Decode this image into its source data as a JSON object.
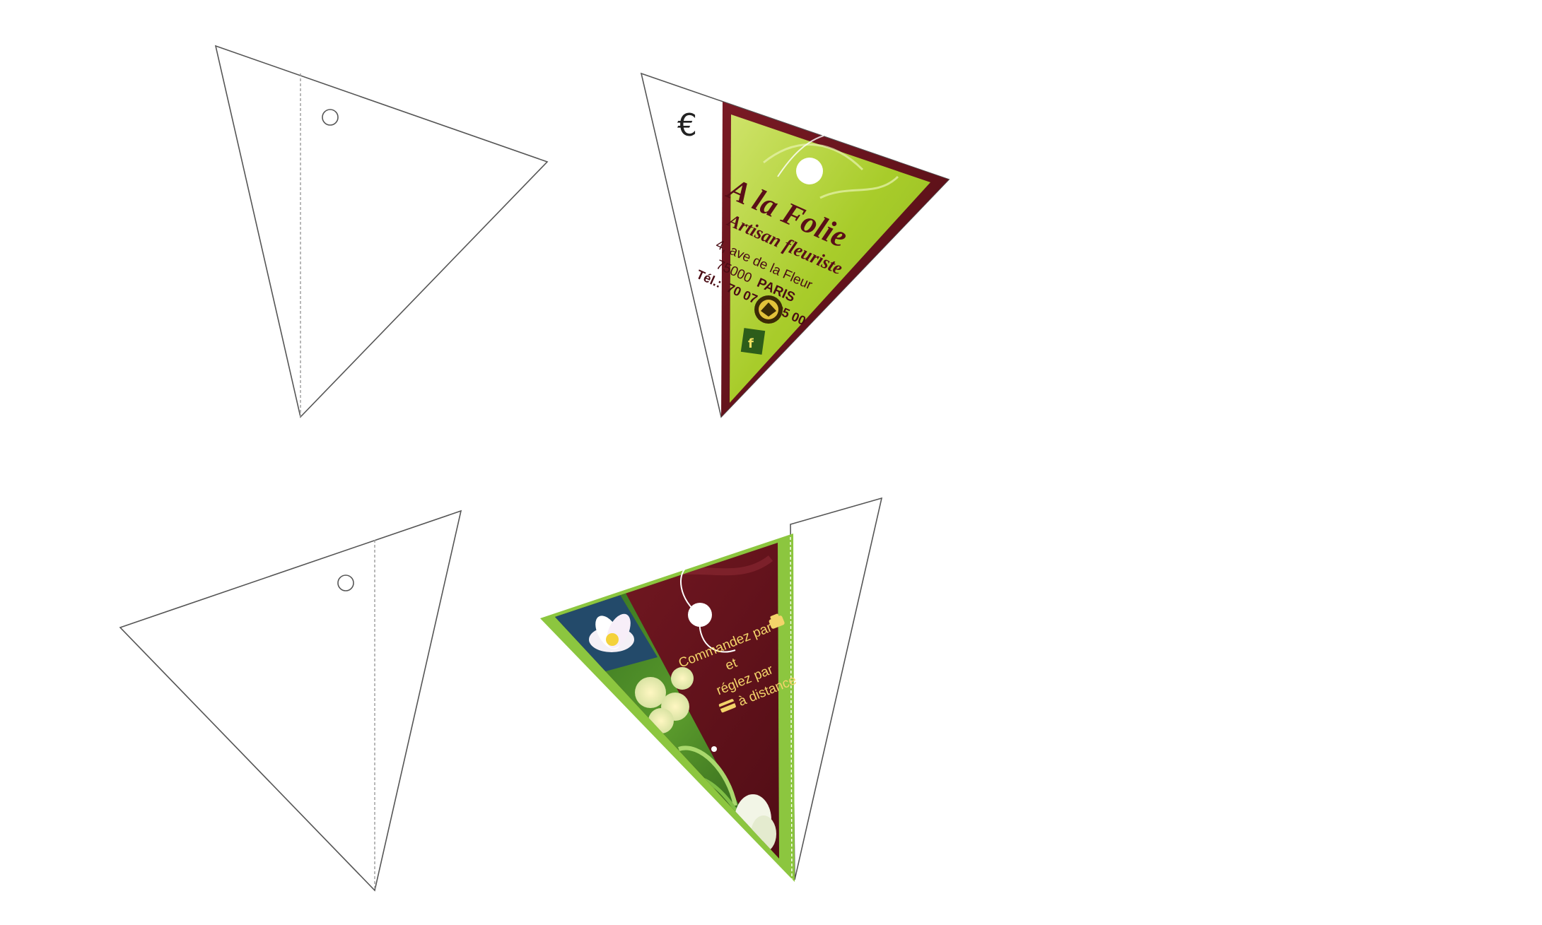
{
  "front": {
    "currency_symbol": "€",
    "shop_name": "A la Folie",
    "subtitle": "Artisan fleuriste",
    "address_line1": "4, ave de la Fleur",
    "address_line2_postcode": "75000",
    "address_line2_city": "PARIS",
    "phone_label": "Tél.:",
    "phone_number": "70 07 13 25 00",
    "colors": {
      "green": "#a8cc2a",
      "maroon": "#6b1420",
      "text": "#5a0e18"
    }
  },
  "back": {
    "line1": "Commandez par",
    "line2": "et",
    "line3": "réglez par",
    "line4": "à distance",
    "colors": {
      "green": "#8cc63f",
      "maroon": "#5e1019",
      "text": "#f3d46a"
    }
  }
}
